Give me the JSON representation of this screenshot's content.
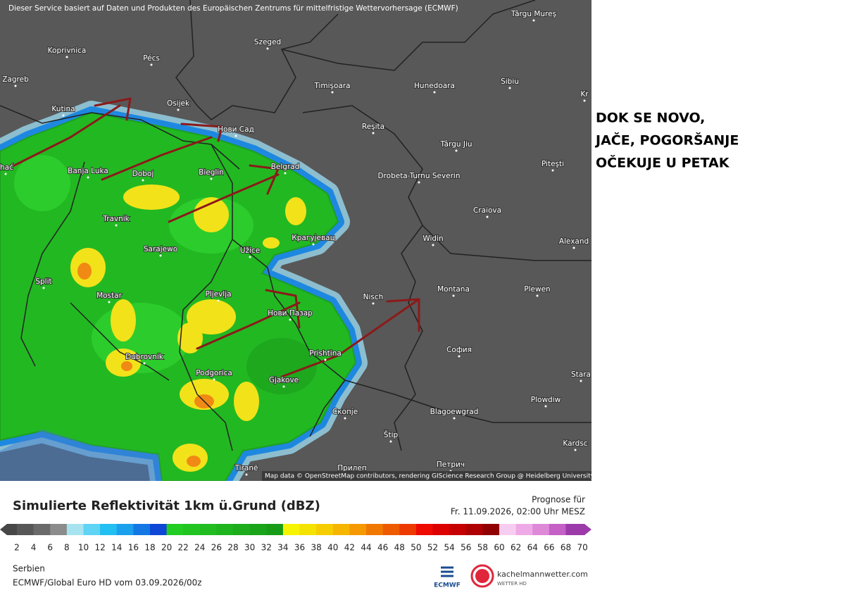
{
  "header": {
    "credit": "Dieser Service basiert auf Daten und Produkten des Europäischen Zentrums für mittelfristige Wettervorhersage (ECMWF)"
  },
  "map": {
    "cities": [
      "Târgu Mureş",
      "Koprivnica",
      "Pécs",
      "Szeged",
      "Zagreb",
      "Timişoara",
      "Hunedoara",
      "Sibiu",
      "Kr",
      "Kutina",
      "Osijek",
      "Нови Сад",
      "Reşita",
      "Târgu Jiu",
      "Piteşti",
      "ihać",
      "Banja Luka",
      "Doboj",
      "Bieglin",
      "Belgrad",
      "Drobeta-Turnu Severin",
      "Craiova",
      "Travnik",
      "Крагујевац",
      "Widin",
      "Alexand",
      "Sarajewo",
      "Užice",
      "Split",
      "Montana",
      "Plewen",
      "Nisch",
      "Mostar",
      "Pljevlja",
      "Нови Пазар",
      "Prishtina",
      "София",
      "Dubrovnik",
      "Podgorica",
      "Gjakove",
      "Stara",
      "Plowdiw",
      "Скопје",
      "Blagoewgrad",
      "Štip",
      "Kardsc",
      "Tiranë",
      "Петрич",
      "Прилеп"
    ],
    "attribution": "Map data © OpenStreetMap contributors, rendering GIScience Research Group @ Heidelberg University"
  },
  "annotation": {
    "lines": [
      "DOK SE NOVO,",
      "JAČE, POGORŠANJE",
      "OČEKUJE U PETAK"
    ]
  },
  "legend": {
    "title": "Simulierte Reflektivität 1km ü.Grund (dBZ)",
    "forecast_label": "Prognose für",
    "forecast_date": "Fr. 11.09.2026, 02:00 Uhr MESZ",
    "ticks": [
      2,
      4,
      6,
      8,
      10,
      12,
      14,
      16,
      18,
      20,
      22,
      24,
      26,
      28,
      30,
      32,
      34,
      36,
      38,
      40,
      42,
      44,
      46,
      48,
      50,
      52,
      54,
      56,
      58,
      60,
      62,
      64,
      66,
      68,
      70
    ]
  },
  "footer": {
    "region": "Serbien",
    "model": "ECMWF/Global Euro HD vom  03.09.2026/00z",
    "ecmwf_logo": "ECMWF",
    "site": "kachelmannwetter.com",
    "site_sub": "WETTER HD"
  }
}
